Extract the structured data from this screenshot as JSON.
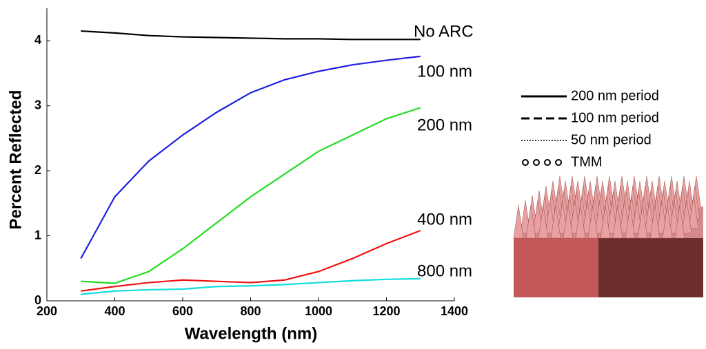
{
  "chart_data": {
    "type": "line",
    "x_label": "Wavelength (nm)",
    "y_label": "Percent Reflected",
    "x": [
      300,
      400,
      500,
      600,
      700,
      800,
      900,
      1000,
      1100,
      1200,
      1300
    ],
    "series": [
      {
        "name": "No ARC",
        "color": "#000000",
        "values": [
          4.15,
          4.12,
          4.08,
          4.06,
          4.05,
          4.04,
          4.03,
          4.03,
          4.02,
          4.02,
          4.02
        ]
      },
      {
        "name": "100 nm",
        "color": "#1f1fe0",
        "values": [
          0.65,
          1.6,
          2.15,
          2.55,
          2.9,
          3.2,
          3.4,
          3.53,
          3.63,
          3.7,
          3.76
        ]
      },
      {
        "name": "200 nm",
        "color": "#22dd22",
        "values": [
          0.3,
          0.27,
          0.45,
          0.8,
          1.2,
          1.6,
          1.95,
          2.3,
          2.55,
          2.8,
          2.97
        ]
      },
      {
        "name": "400 nm",
        "color": "#ee1111",
        "values": [
          0.15,
          0.22,
          0.28,
          0.32,
          0.3,
          0.28,
          0.32,
          0.45,
          0.65,
          0.88,
          1.08
        ]
      },
      {
        "name": "800 nm",
        "color": "#11dddd",
        "values": [
          0.1,
          0.15,
          0.17,
          0.18,
          0.22,
          0.23,
          0.25,
          0.28,
          0.31,
          0.33,
          0.34
        ]
      }
    ],
    "xlim": [
      200,
      1400
    ],
    "xticks": [
      200,
      400,
      600,
      800,
      1000,
      1200,
      1400
    ],
    "ylim": [
      0,
      4.5
    ],
    "yticks": [
      0,
      1,
      2,
      3,
      4
    ],
    "style_legend": [
      {
        "name": "200 nm period",
        "style": "solid"
      },
      {
        "name": "100 nm period",
        "style": "dashed"
      },
      {
        "name": "50 nm period",
        "style": "dotted"
      },
      {
        "name": "TMM",
        "style": "circles"
      }
    ]
  }
}
